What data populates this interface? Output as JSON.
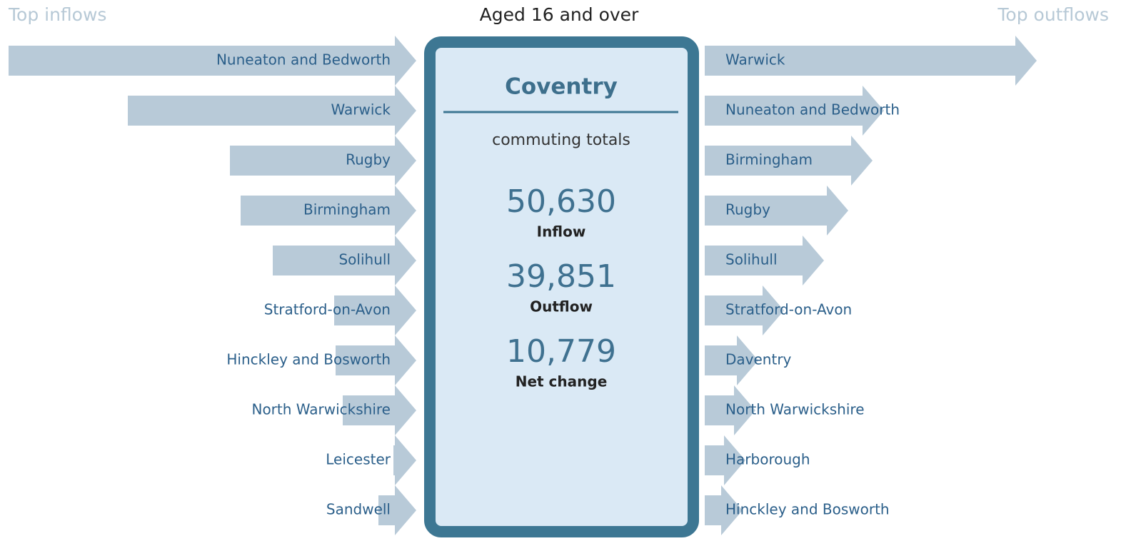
{
  "chart_data": {
    "type": "flow",
    "title": "Aged 16 and over",
    "left_heading": "Top inflows",
    "right_heading": "Top outflows",
    "summary": {
      "place": "Coventry",
      "subtitle": "commuting totals",
      "totals": [
        {
          "value": "50,630",
          "label": "Inflow"
        },
        {
          "value": "39,851",
          "label": "Outflow"
        },
        {
          "value": "10,779",
          "label": "Net change"
        }
      ]
    },
    "color": "#b8cad8",
    "inflows": {
      "categories": [
        "Nuneaton and Bedworth",
        "Warwick",
        "Rugby",
        "Birmingham",
        "Solihull",
        "Stratford-on-Avon",
        "Hinckley and Bosworth",
        "North Warwickshire",
        "Leicester",
        "Sandwell"
      ],
      "values": [
        11420,
        8080,
        5220,
        4920,
        4020,
        2300,
        2260,
        2060,
        640,
        1060
      ]
    },
    "outflows": {
      "categories": [
        "Warwick",
        "Nuneaton and Bedworth",
        "Birmingham",
        "Rugby",
        "Solihull",
        "Stratford-on-Avon",
        "Daventry",
        "North Warwickshire",
        "Harborough",
        "Hinckley and Bosworth"
      ],
      "values": [
        9300,
        5020,
        4700,
        4020,
        3340,
        2220,
        1500,
        1420,
        1140,
        1060
      ]
    }
  }
}
